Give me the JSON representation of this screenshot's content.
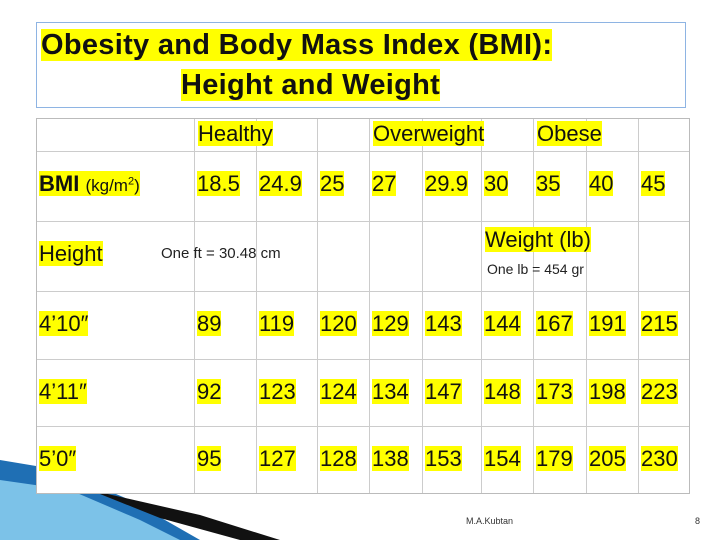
{
  "title": {
    "line1": "Obesity and Body Mass Index (BMI):",
    "line2": "Height and Weight"
  },
  "table": {
    "header": [
      "Healthy",
      "Overweight",
      "Obese"
    ],
    "bmi_label": "BMI",
    "bmi_unit": "(kg/m",
    "bmi_unit_exponent": "2",
    "bmi_unit_close": ")",
    "bmi_values": [
      18.5,
      24.9,
      25,
      27,
      29.9,
      30,
      35,
      40,
      45
    ],
    "height_label": "Height",
    "height_note": "One ft = 30.48 cm",
    "weight_label": "Weight (lb)",
    "weight_note": "One lb = 454 gr",
    "rows": [
      {
        "height": "4’10″",
        "weights": [
          89,
          119,
          120,
          129,
          143,
          144,
          167,
          191,
          215
        ]
      },
      {
        "height": "4’11″",
        "weights": [
          92,
          123,
          124,
          134,
          147,
          148,
          173,
          198,
          223
        ]
      },
      {
        "height": "5’0″",
        "weights": [
          95,
          127,
          128,
          138,
          153,
          154,
          179,
          205,
          230
        ]
      }
    ]
  },
  "footer": {
    "author": "M.A.Kubtan",
    "page": "8"
  }
}
